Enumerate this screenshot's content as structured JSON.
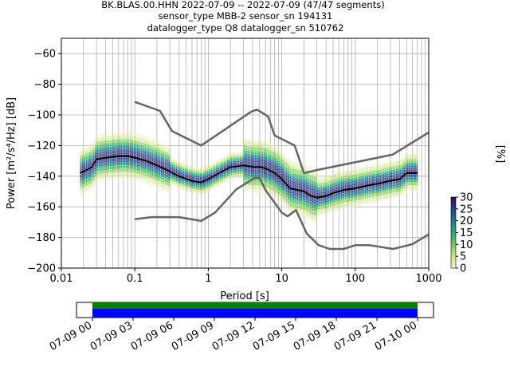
{
  "header": {
    "line1": "BK.BLAS.00.HHN   2022-07-09 -- 2022-07-09  (47/47 segments)",
    "line2": "sensor_type MBB-2 sensor_sn 194131",
    "line3": "datalogger_type Q8 datalogger_sn 510762"
  },
  "chart_data": [
    {
      "type": "heatmap",
      "title": "BK.BLAS.00.HHN   2022-07-09 -- 2022-07-09  (47/47 segments)",
      "xlabel": "Period [s]",
      "ylabel": "Power [m²/s⁴/Hz] [dB]",
      "x_scale": "log",
      "xlim": [
        0.01,
        1000
      ],
      "ylim": [
        -200,
        -50
      ],
      "x_ticks": [
        "0.01",
        "0.1",
        "1",
        "10",
        "100",
        "1000"
      ],
      "y_ticks": [
        "-200",
        "-180",
        "-160",
        "-140",
        "-120",
        "-100",
        "-80",
        "-60"
      ],
      "grid": true,
      "colorbar": {
        "label": "[%]",
        "range": [
          0,
          30
        ],
        "ticks": [
          "0",
          "5",
          "10",
          "15",
          "20",
          "25",
          "30"
        ],
        "colors": [
          "#f4f4c8",
          "#d2e89a",
          "#8fd06a",
          "#3cb86a",
          "#1e9a82",
          "#1f6a8c",
          "#2b3a86",
          "#3a0b52"
        ]
      },
      "series": [
        {
          "role": "mode_curve",
          "color": "#000000",
          "x": [
            0.018,
            0.022,
            0.026,
            0.03,
            0.04,
            0.06,
            0.08,
            0.1,
            0.14,
            0.2,
            0.3,
            0.4,
            0.6,
            0.8,
            1,
            1.4,
            2,
            3,
            4,
            5,
            6,
            8,
            10,
            13,
            16,
            20,
            25,
            30,
            40,
            50,
            70,
            100,
            150,
            200,
            300,
            400,
            500,
            700
          ],
          "y": [
            -138,
            -136,
            -134,
            -129,
            -128,
            -127,
            -127,
            -128,
            -130,
            -133,
            -137,
            -140,
            -143,
            -144,
            -142,
            -138,
            -134,
            -133,
            -134,
            -134,
            -135,
            -138,
            -142,
            -148,
            -149,
            -150,
            -153,
            -154,
            -153,
            -151,
            -149,
            -148,
            -146,
            -145,
            -143,
            -142,
            -138,
            -138
          ]
        },
        {
          "role": "upper_noise_model",
          "color": "#666666",
          "x": [
            0.1,
            0.22,
            0.32,
            0.8,
            3.8,
            4.6,
            6.5,
            8,
            15,
            20,
            30,
            320,
            1000
          ],
          "y": [
            -91.5,
            -97.4,
            -110.5,
            -120,
            -98,
            -96.5,
            -101,
            -113.5,
            -120,
            -138,
            -136,
            -126,
            -111.5
          ]
        },
        {
          "role": "lower_noise_model",
          "color": "#666666",
          "x": [
            0.1,
            0.17,
            0.4,
            0.8,
            1.24,
            2.4,
            4.3,
            5,
            6,
            10,
            12,
            15.6,
            21.9,
            31.6,
            45,
            70,
            101,
            154,
            328,
            600,
            1000
          ],
          "y": [
            -168,
            -166.7,
            -166.7,
            -169.2,
            -163.7,
            -148.6,
            -141.1,
            -141.1,
            -149,
            -163.8,
            -166.2,
            -162.1,
            -177.5,
            -185,
            -187.5,
            -187.5,
            -185,
            -185,
            -187.5,
            -184.4,
            -178
          ]
        }
      ]
    },
    {
      "type": "timeline",
      "x_ticks": [
        "07-09 00",
        "07-09 03",
        "07-09 06",
        "07-09 09",
        "07-09 12",
        "07-09 15",
        "07-09 18",
        "07-09 21",
        "07-10 00"
      ],
      "bands": [
        {
          "role": "data",
          "color": "#008000"
        },
        {
          "role": "psd",
          "color": "#0000ff"
        }
      ]
    }
  ]
}
